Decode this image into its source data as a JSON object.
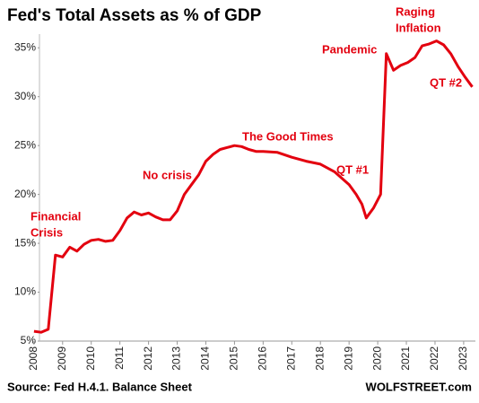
{
  "chart_data": {
    "type": "line",
    "title": "Fed's Total Assets as % of GDP",
    "source": "Source: Fed H.4.1. Balance Sheet",
    "credit": "WOLFSTREET.com",
    "color": "#e3000f",
    "x": [
      2008.0,
      2008.25,
      2008.5,
      2008.75,
      2009.0,
      2009.25,
      2009.5,
      2009.75,
      2010.0,
      2010.25,
      2010.5,
      2010.75,
      2011.0,
      2011.25,
      2011.5,
      2011.75,
      2012.0,
      2012.25,
      2012.5,
      2012.75,
      2013.0,
      2013.25,
      2013.5,
      2013.75,
      2014.0,
      2014.25,
      2014.5,
      2014.75,
      2015.0,
      2015.25,
      2015.5,
      2015.75,
      2016.0,
      2016.5,
      2017.0,
      2017.5,
      2018.0,
      2018.5,
      2019.0,
      2019.25,
      2019.45,
      2019.6,
      2019.85,
      2020.1,
      2020.3,
      2020.55,
      2020.8,
      2021.05,
      2021.3,
      2021.55,
      2021.8,
      2022.05,
      2022.3,
      2022.55,
      2022.8,
      2023.05,
      2023.3
    ],
    "values": [
      6.0,
      5.9,
      6.2,
      13.8,
      13.6,
      14.6,
      14.2,
      14.9,
      15.3,
      15.4,
      15.2,
      15.3,
      16.3,
      17.6,
      18.2,
      17.9,
      18.1,
      17.7,
      17.4,
      17.4,
      18.3,
      20.0,
      21.0,
      22.0,
      23.4,
      24.1,
      24.6,
      24.8,
      25.0,
      24.9,
      24.6,
      24.4,
      24.4,
      24.3,
      23.8,
      23.4,
      23.1,
      22.3,
      21.0,
      20.0,
      19.0,
      17.6,
      18.6,
      20.0,
      34.4,
      32.7,
      33.2,
      33.5,
      34.0,
      35.2,
      35.4,
      35.7,
      35.3,
      34.4,
      33.1,
      32.0,
      31.0
    ],
    "xlim": [
      2007.66,
      2023.41
    ],
    "ylim": [
      5,
      36.4
    ],
    "xticks": [
      2008,
      2009,
      2010,
      2011,
      2012,
      2013,
      2014,
      2015,
      2016,
      2017,
      2018,
      2019,
      2020,
      2021,
      2022,
      2023
    ],
    "yticks": [
      {
        "value": 5,
        "label": "5%"
      },
      {
        "value": 10,
        "label": "10%"
      },
      {
        "value": 15,
        "label": "15%"
      },
      {
        "value": 20,
        "label": "20%"
      },
      {
        "value": 25,
        "label": "25%"
      },
      {
        "value": 30,
        "label": "30%"
      },
      {
        "value": 35,
        "label": "35%"
      }
    ],
    "annotations": [
      [
        "Financial",
        "Crisis"
      ],
      [
        "No crisis"
      ],
      [
        "The Good Times"
      ],
      [
        "QT #1"
      ],
      [
        "Pandemic"
      ],
      [
        "Raging",
        "Inflation"
      ],
      [
        "QT #2"
      ]
    ]
  }
}
